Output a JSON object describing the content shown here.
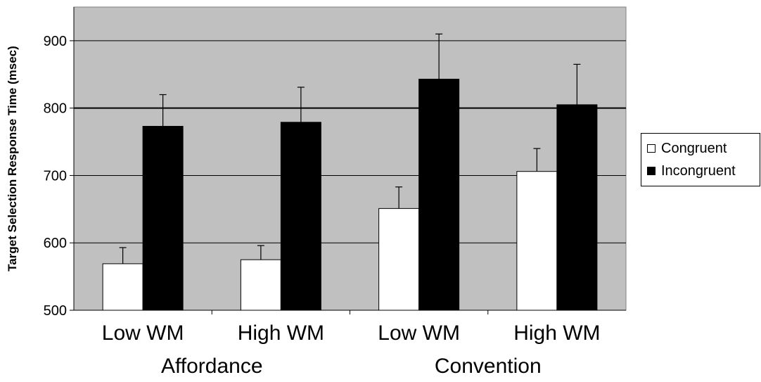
{
  "chart_data": {
    "type": "bar",
    "title": "",
    "ylabel": "Target Selection Response Time (msec)",
    "xlabel": "",
    "ylim": [
      500,
      950
    ],
    "yticks": [
      500,
      600,
      700,
      800,
      900
    ],
    "grid": true,
    "legend_position": "right",
    "categories": [
      "Low WM",
      "High WM",
      "Low WM",
      "High WM"
    ],
    "groups": [
      {
        "label": "Affordance",
        "categories": [
          "Low WM",
          "High WM"
        ]
      },
      {
        "label": "Convention",
        "categories": [
          "Low WM",
          "High WM"
        ]
      }
    ],
    "series": [
      {
        "name": "Congruent",
        "color": "#ffffff",
        "values": [
          569,
          575,
          651,
          706
        ],
        "error": [
          24,
          21,
          32,
          34
        ]
      },
      {
        "name": "Incongruent",
        "color": "#000000",
        "values": [
          773,
          779,
          843,
          805
        ],
        "error": [
          47,
          52,
          67,
          60
        ]
      }
    ],
    "colors": {
      "plot_background": "#c0c0c0",
      "gridline": "#000000"
    }
  }
}
